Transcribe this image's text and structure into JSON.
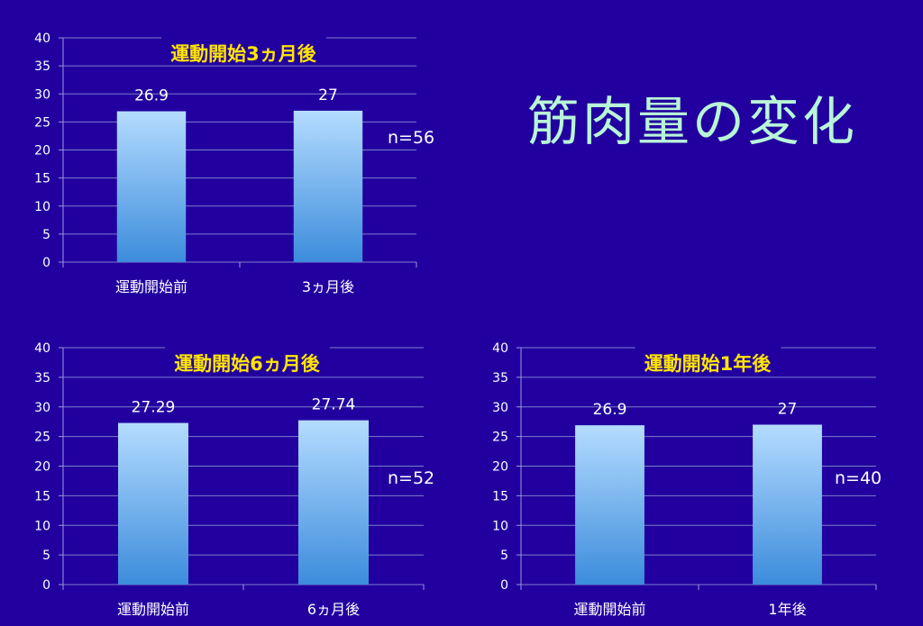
{
  "slide": {
    "heading": "筋肉量の変化",
    "heading_color": "#b8f5d6",
    "background_color": "#2200a0"
  },
  "sample_sizes": {
    "chart1": "n=56",
    "chart2": "n=52",
    "chart3": "n=40"
  },
  "colors": {
    "chart_title": "#ffe600",
    "text": "#ffffff",
    "bar_top": "#b4dcff",
    "bar_bottom": "#3c8cdc"
  },
  "chart_data": [
    {
      "type": "bar",
      "title": "運動開始3ヵ月後",
      "categories": [
        "運動開始前",
        "3ヵ月後"
      ],
      "values": [
        26.9,
        27
      ],
      "value_labels": [
        "26.9",
        "27"
      ],
      "ylim": [
        0,
        40
      ],
      "yticks": [
        0,
        5,
        10,
        15,
        20,
        25,
        30,
        35,
        40
      ],
      "grid": true
    },
    {
      "type": "bar",
      "title": "運動開始6ヵ月後",
      "categories": [
        "運動開始前",
        "6ヵ月後"
      ],
      "values": [
        27.29,
        27.74
      ],
      "value_labels": [
        "27.29",
        "27.74"
      ],
      "ylim": [
        0,
        40
      ],
      "yticks": [
        0,
        5,
        10,
        15,
        20,
        25,
        30,
        35,
        40
      ],
      "grid": true
    },
    {
      "type": "bar",
      "title": "運動開始1年後",
      "categories": [
        "運動開始前",
        "1年後"
      ],
      "values": [
        26.9,
        27
      ],
      "value_labels": [
        "26.9",
        "27"
      ],
      "ylim": [
        0,
        40
      ],
      "yticks": [
        0,
        5,
        10,
        15,
        20,
        25,
        30,
        35,
        40
      ],
      "grid": true
    }
  ]
}
